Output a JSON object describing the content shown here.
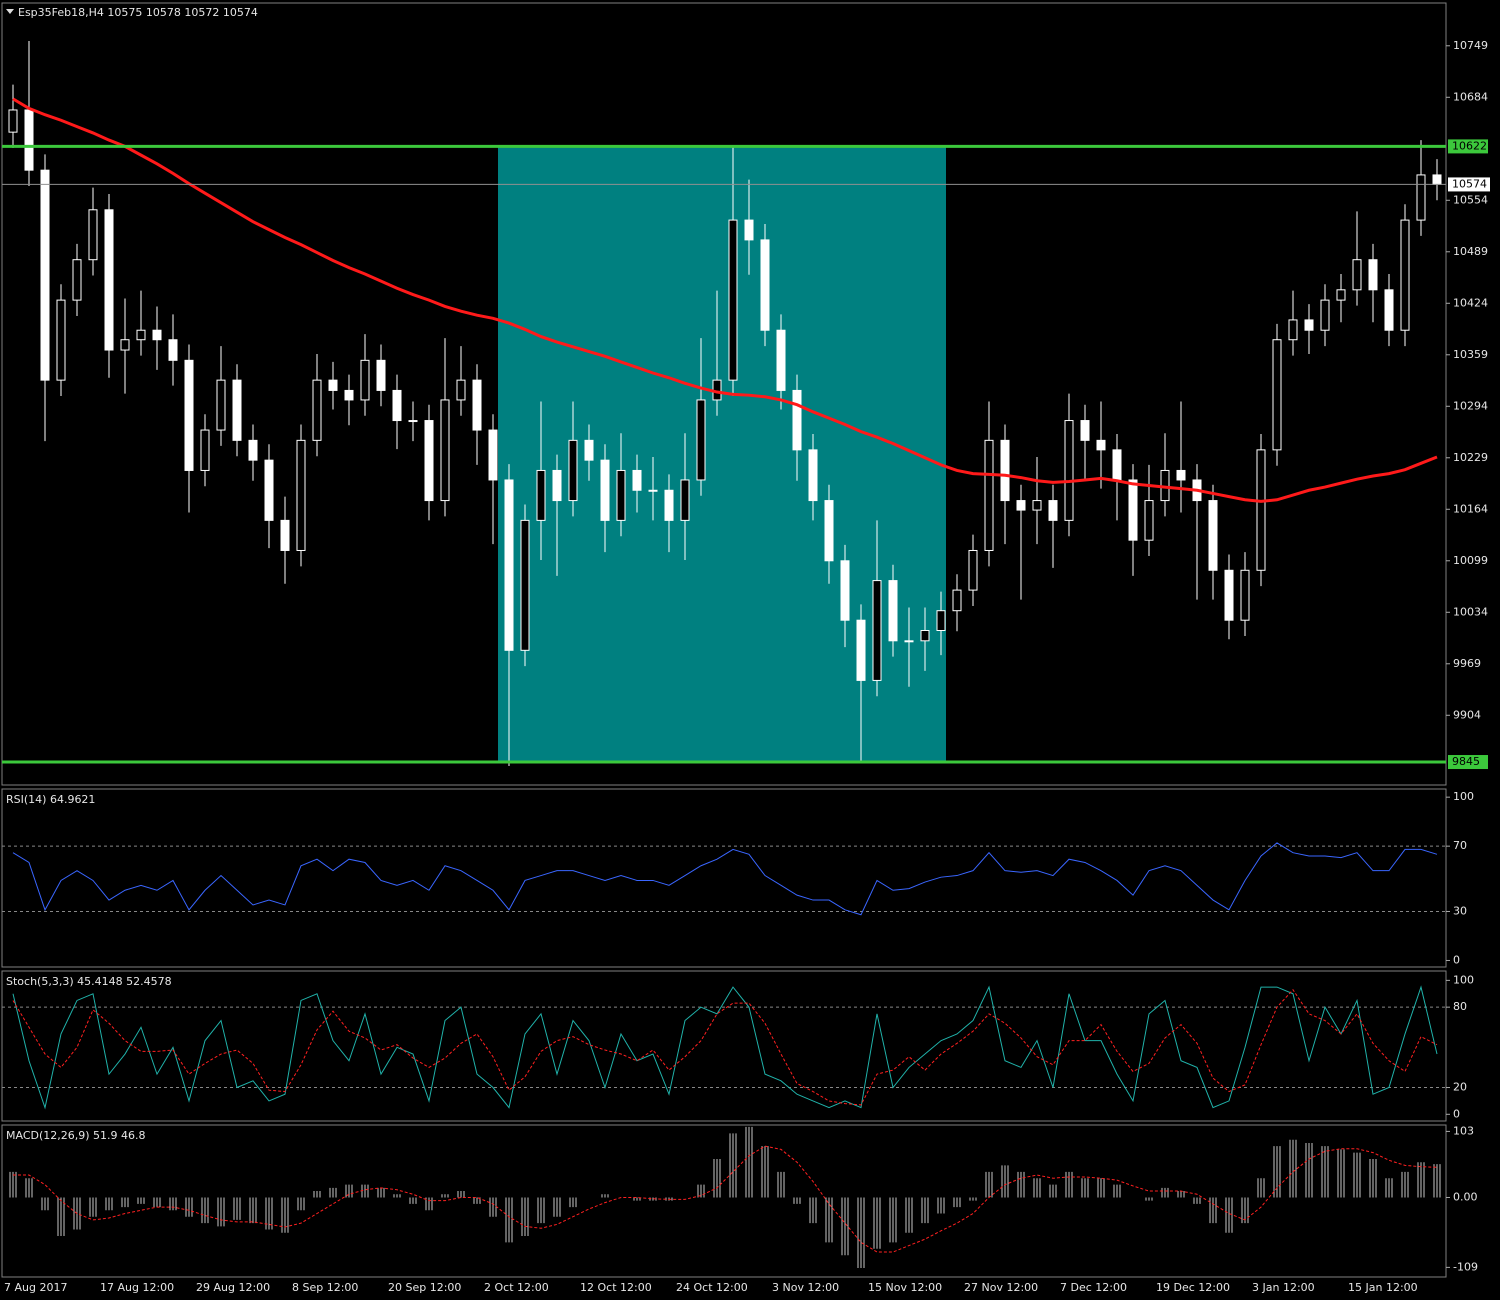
{
  "chart_data": [
    {
      "type": "candlestick",
      "title": "Esp35Feb18,H4  10575 10578 10572 10574",
      "categories": [
        "7 Aug 2017",
        null,
        null,
        null,
        null,
        null,
        "17 Aug 12:00",
        null,
        null,
        null,
        null,
        null,
        "29 Aug 12:00",
        null,
        null,
        null,
        null,
        null,
        "8 Sep 12:00",
        null,
        null,
        null,
        null,
        null,
        "20 Sep 12:00",
        null,
        null,
        null,
        null,
        null,
        "2 Oct 12:00",
        null,
        null,
        null,
        null,
        null,
        "12 Oct 12:00",
        null,
        null,
        null,
        null,
        null,
        "24 Oct 12:00",
        null,
        null,
        null,
        null,
        null,
        "3 Nov 12:00",
        null,
        null,
        null,
        null,
        null,
        "15 Nov 12:00",
        null,
        null,
        null,
        null,
        null,
        "27 Nov 12:00",
        null,
        null,
        null,
        null,
        null,
        "7 Dec 12:00",
        null,
        null,
        null,
        null,
        null,
        "19 Dec 12:00",
        null,
        null,
        null,
        null,
        null,
        "3 Jan 12:00",
        null,
        null,
        null,
        null,
        null,
        "15 Jan 12:00",
        null,
        null,
        null,
        null,
        null
      ],
      "open": [
        10640,
        10668,
        10592,
        10327,
        10428,
        10479,
        10542,
        10365,
        10378,
        10390,
        10378,
        10352,
        10213,
        10264,
        10327,
        10251,
        10226,
        10150,
        10112,
        10251,
        10327,
        10314,
        10302,
        10352,
        10314,
        10276,
        10276,
        10175,
        10302,
        10327,
        10264,
        10201,
        9986,
        10150,
        10213,
        10175,
        10251,
        10226,
        10150,
        10213,
        10188,
        10188,
        10150,
        10201,
        10302,
        10327,
        10529,
        10504,
        10390,
        10314,
        10239,
        10175,
        10099,
        10024,
        9948,
        10074,
        9998,
        9998,
        10011,
        10036,
        10062,
        10112,
        10251,
        10175,
        10163,
        10175,
        10150,
        10276,
        10251,
        10239,
        10201,
        10125,
        10175,
        10213,
        10201,
        10175,
        10087,
        10024,
        10087,
        10239,
        10378,
        10403,
        10390,
        10428,
        10441,
        10479,
        10441,
        10390,
        10529,
        10586
      ],
      "high": [
        10700,
        10755,
        10612,
        10448,
        10499,
        10570,
        10562,
        10430,
        10440,
        10420,
        10410,
        10372,
        10284,
        10370,
        10347,
        10271,
        10246,
        10180,
        10271,
        10360,
        10350,
        10334,
        10385,
        10372,
        10334,
        10300,
        10296,
        10380,
        10370,
        10347,
        10284,
        10221,
        10170,
        10300,
        10233,
        10300,
        10271,
        10246,
        10260,
        10233,
        10230,
        10208,
        10260,
        10380,
        10440,
        10622,
        10580,
        10524,
        10410,
        10334,
        10259,
        10195,
        10119,
        10044,
        10150,
        10094,
        10040,
        10040,
        10060,
        10082,
        10132,
        10300,
        10271,
        10195,
        10230,
        10195,
        10310,
        10296,
        10300,
        10259,
        10221,
        10220,
        10260,
        10300,
        10221,
        10195,
        10107,
        10110,
        10259,
        10398,
        10440,
        10423,
        10448,
        10461,
        10540,
        10499,
        10461,
        10549,
        10630,
        10606
      ],
      "low": [
        10620,
        10572,
        10250,
        10307,
        10408,
        10459,
        10330,
        10310,
        10358,
        10340,
        10320,
        10160,
        10193,
        10244,
        10231,
        10200,
        10115,
        10070,
        10092,
        10231,
        10290,
        10270,
        10282,
        10294,
        10240,
        10250,
        10150,
        10155,
        10282,
        10220,
        10120,
        9840,
        9966,
        10100,
        10080,
        10155,
        10200,
        10110,
        10130,
        10160,
        10150,
        10110,
        10100,
        10181,
        10282,
        10307,
        10460,
        10370,
        10290,
        10200,
        10150,
        10070,
        9990,
        9845,
        9928,
        9978,
        9940,
        9960,
        9980,
        10010,
        10042,
        10092,
        10120,
        10050,
        10120,
        10090,
        10130,
        10200,
        10190,
        10150,
        10080,
        10105,
        10155,
        10160,
        10050,
        10050,
        10000,
        10004,
        10067,
        10219,
        10358,
        10360,
        10370,
        10400,
        10421,
        10400,
        10370,
        10370,
        10509,
        10554
      ],
      "close": [
        10668,
        10592,
        10327,
        10428,
        10479,
        10542,
        10365,
        10378,
        10390,
        10378,
        10352,
        10213,
        10264,
        10327,
        10251,
        10226,
        10150,
        10112,
        10251,
        10327,
        10314,
        10302,
        10352,
        10314,
        10276,
        10276,
        10175,
        10302,
        10327,
        10264,
        10201,
        9986,
        10150,
        10213,
        10175,
        10251,
        10226,
        10150,
        10213,
        10188,
        10188,
        10150,
        10201,
        10302,
        10327,
        10529,
        10504,
        10390,
        10314,
        10239,
        10175,
        10099,
        10024,
        9948,
        10074,
        9998,
        9998,
        10011,
        10036,
        10062,
        10112,
        10251,
        10175,
        10163,
        10175,
        10150,
        10276,
        10251,
        10239,
        10201,
        10125,
        10175,
        10213,
        10201,
        10175,
        10087,
        10024,
        10087,
        10239,
        10378,
        10403,
        10390,
        10428,
        10441,
        10479,
        10441,
        10390,
        10529,
        10586,
        10574
      ],
      "candle_color": "#ffffff",
      "moving_average": {
        "color": "#ff1a1a",
        "values": [
          10682,
          10670,
          10662,
          10655,
          10647,
          10639,
          10630,
          10622,
          10611,
          10600,
          10588,
          10575,
          10563,
          10551,
          10539,
          10527,
          10517,
          10507,
          10498,
          10488,
          10478,
          10469,
          10461,
          10452,
          10443,
          10435,
          10428,
          10420,
          10414,
          10409,
          10405,
          10399,
          10391,
          10382,
          10375,
          10369,
          10363,
          10357,
          10350,
          10343,
          10336,
          10330,
          10323,
          10317,
          10312,
          10309,
          10308,
          10306,
          10302,
          10296,
          10287,
          10279,
          10271,
          10262,
          10255,
          10247,
          10238,
          10229,
          10220,
          10213,
          10209,
          10208,
          10207,
          10204,
          10200,
          10198,
          10199,
          10201,
          10203,
          10200,
          10196,
          10194,
          10192,
          10190,
          10188,
          10184,
          10180,
          10176,
          10174,
          10176,
          10182,
          10188,
          10192,
          10197,
          10202,
          10206,
          10209,
          10214,
          10222,
          10230
        ]
      },
      "levels": [
        10622,
        9845
      ],
      "level_color": "#3cc83c",
      "zone_color": "#008080",
      "last": 10574,
      "ylim": [
        9816,
        10803
      ],
      "yticks": [
        10749,
        10684,
        10554,
        10489,
        10424,
        10359,
        10294,
        10229,
        10164,
        10099,
        10034,
        9969,
        9904
      ],
      "grid": false
    },
    {
      "type": "line",
      "title": "RSI(14) 64.9621",
      "series": [
        {
          "color": "#3a66ff",
          "values": [
            66,
            60,
            31,
            49,
            55,
            49,
            37,
            43,
            46,
            43,
            49,
            31,
            43,
            52,
            43,
            34,
            37,
            34,
            58,
            62,
            55,
            62,
            60,
            49,
            46,
            49,
            43,
            58,
            55,
            49,
            43,
            31,
            49,
            52,
            55,
            55,
            52,
            49,
            52,
            49,
            49,
            46,
            52,
            58,
            62,
            68,
            65,
            52,
            46,
            40,
            37,
            37,
            31,
            28,
            49,
            43,
            44,
            48,
            51,
            52,
            55,
            66,
            55,
            54,
            55,
            52,
            62,
            60,
            55,
            49,
            40,
            55,
            58,
            55,
            46,
            37,
            31,
            49,
            64,
            72,
            66,
            64,
            64,
            63,
            66,
            55,
            55,
            68,
            68,
            65
          ]
        }
      ],
      "ylim": [
        -4,
        105
      ],
      "yticks": [
        100,
        70,
        30,
        0
      ],
      "grid": true
    },
    {
      "type": "line",
      "title": "Stoch(5,3,3) 45.4148 52.4578",
      "series": [
        {
          "color": "#20b2aa",
          "values": [
            90,
            40,
            5,
            60,
            85,
            90,
            30,
            45,
            65,
            30,
            50,
            10,
            55,
            70,
            20,
            25,
            10,
            15,
            85,
            90,
            55,
            40,
            75,
            30,
            50,
            45,
            10,
            70,
            80,
            30,
            20,
            5,
            60,
            75,
            30,
            70,
            55,
            20,
            60,
            40,
            45,
            15,
            70,
            80,
            75,
            95,
            80,
            30,
            25,
            15,
            10,
            5,
            10,
            5,
            75,
            20,
            35,
            45,
            55,
            60,
            70,
            95,
            40,
            35,
            55,
            20,
            90,
            55,
            55,
            30,
            10,
            75,
            85,
            40,
            35,
            5,
            10,
            50,
            95,
            95,
            90,
            40,
            80,
            60,
            85,
            15,
            20,
            60,
            95,
            45
          ]
        },
        {
          "color": "#ff2020",
          "dashed": true,
          "values": [
            85,
            65,
            45,
            35,
            50,
            78,
            68,
            55,
            47,
            47,
            48,
            30,
            38,
            45,
            48,
            38,
            18,
            17,
            37,
            63,
            77,
            62,
            57,
            48,
            52,
            42,
            35,
            42,
            53,
            60,
            43,
            18,
            28,
            47,
            55,
            58,
            52,
            48,
            45,
            40,
            48,
            33,
            43,
            55,
            75,
            83,
            83,
            68,
            45,
            23,
            17,
            10,
            8,
            7,
            30,
            33,
            43,
            33,
            45,
            53,
            62,
            75,
            68,
            57,
            43,
            37,
            55,
            55,
            67,
            47,
            32,
            38,
            57,
            67,
            53,
            27,
            17,
            22,
            52,
            80,
            93,
            75,
            70,
            60,
            75,
            53,
            40,
            32,
            58,
            52
          ]
        }
      ],
      "ylim": [
        -5,
        107
      ],
      "yticks": [
        100,
        80,
        20,
        0
      ],
      "grid": true
    },
    {
      "type": "macd",
      "title": "MACD(12,26,9) 51.9 46.8",
      "color": "#c8c8c8",
      "values": [
        40,
        30,
        -20,
        -60,
        -50,
        -30,
        -20,
        -15,
        -10,
        -15,
        -20,
        -30,
        -40,
        -45,
        -35,
        -40,
        -50,
        -55,
        -20,
        10,
        15,
        20,
        20,
        15,
        5,
        -10,
        -20,
        5,
        10,
        -10,
        -30,
        -70,
        -60,
        -40,
        -30,
        -15,
        0,
        5,
        0,
        -5,
        -5,
        -5,
        0,
        20,
        60,
        100,
        110,
        80,
        40,
        -10,
        -40,
        -70,
        -90,
        -110,
        -80,
        -70,
        -55,
        -40,
        -25,
        -15,
        -5,
        40,
        50,
        40,
        30,
        20,
        40,
        30,
        30,
        20,
        0,
        -5,
        15,
        10,
        -10,
        -40,
        -55,
        -40,
        30,
        80,
        90,
        85,
        80,
        75,
        70,
        60,
        30,
        40,
        55,
        52
      ],
      "signal": {
        "color": "#ff2020",
        "values": [
          35,
          35,
          20,
          -5,
          -25,
          -35,
          -32,
          -25,
          -20,
          -15,
          -15,
          -20,
          -28,
          -35,
          -38,
          -38,
          -42,
          -46,
          -40,
          -25,
          -10,
          5,
          12,
          15,
          12,
          5,
          -5,
          -5,
          0,
          0,
          -10,
          -30,
          -45,
          -48,
          -42,
          -30,
          -18,
          -8,
          0,
          0,
          -2,
          -3,
          -3,
          3,
          15,
          40,
          65,
          80,
          75,
          55,
          25,
          -10,
          -40,
          -70,
          -85,
          -85,
          -75,
          -65,
          -52,
          -40,
          -25,
          0,
          20,
          30,
          35,
          30,
          32,
          32,
          30,
          27,
          18,
          10,
          10,
          10,
          5,
          -10,
          -25,
          -35,
          -15,
          15,
          40,
          60,
          72,
          76,
          76,
          70,
          58,
          50,
          48,
          47
        ]
      },
      "ylim": [
        -124,
        113
      ],
      "yticks": [
        103,
        {
          "value": 0,
          "label": "0.00"
        },
        -109
      ],
      "grid": false
    }
  ]
}
